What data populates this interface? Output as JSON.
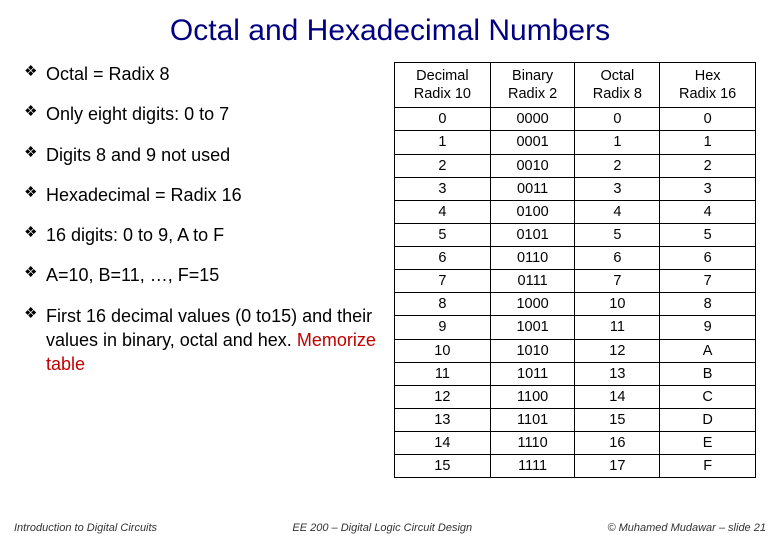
{
  "title": "Octal and Hexadecimal Numbers",
  "bullets": {
    "b0": "Octal = Radix 8",
    "b1": "Only eight digits: 0 to 7",
    "b2": "Digits 8 and 9 not used",
    "b3": "Hexadecimal = Radix 16",
    "b4": "16 digits: 0 to 9, A to F",
    "b5": "A=10, B=11, …, F=15",
    "b6a": "First 16 decimal values (0 to15) and their values in binary, octal and hex. ",
    "b6b": "Memorize table"
  },
  "table": {
    "columns": [
      {
        "h1": "Decimal",
        "h2": "Radix 10"
      },
      {
        "h1": "Binary",
        "h2": "Radix 2"
      },
      {
        "h1": "Octal",
        "h2": "Radix 8"
      },
      {
        "h1": "Hex",
        "h2": "Radix 16"
      }
    ],
    "rows": [
      [
        "0",
        "0000",
        "0",
        "0"
      ],
      [
        "1",
        "0001",
        "1",
        "1"
      ],
      [
        "2",
        "0010",
        "2",
        "2"
      ],
      [
        "3",
        "0011",
        "3",
        "3"
      ],
      [
        "4",
        "0100",
        "4",
        "4"
      ],
      [
        "5",
        "0101",
        "5",
        "5"
      ],
      [
        "6",
        "0110",
        "6",
        "6"
      ],
      [
        "7",
        "0111",
        "7",
        "7"
      ],
      [
        "8",
        "1000",
        "10",
        "8"
      ],
      [
        "9",
        "1001",
        "11",
        "9"
      ],
      [
        "10",
        "1010",
        "12",
        "A"
      ],
      [
        "11",
        "1011",
        "13",
        "B"
      ],
      [
        "12",
        "1100",
        "14",
        "C"
      ],
      [
        "13",
        "1101",
        "15",
        "D"
      ],
      [
        "14",
        "1110",
        "16",
        "E"
      ],
      [
        "15",
        "1111",
        "17",
        "F"
      ]
    ]
  },
  "footer": {
    "left": "Introduction to Digital Circuits",
    "center": "EE 200 – Digital Logic Circuit Design",
    "right": "© Muhamed Mudawar – slide 21"
  },
  "colors": {
    "title": "#000080",
    "memorize": "#c00000",
    "border": "#000000",
    "background": "#ffffff"
  },
  "fonts": {
    "title_family": "Comic Sans MS",
    "body_family": "Arial",
    "title_size_pt": 30,
    "bullet_size_pt": 18,
    "table_size_pt": 14.5,
    "footer_size_pt": 11
  }
}
